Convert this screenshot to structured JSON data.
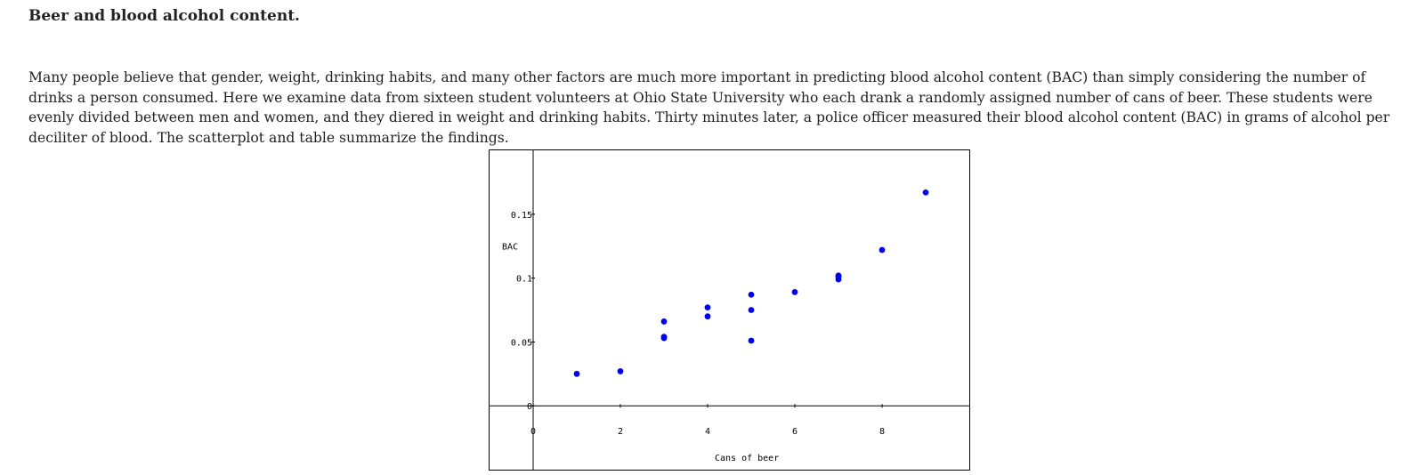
{
  "heading": "Beer and blood alcohol content.",
  "intro": "Many people believe that gender, weight, drinking habits, and many other factors are much more important in predicting blood alcohol content (BAC) than simply considering the number of drinks a person consumed. Here we examine data from sixteen student volunteers at Ohio State University who each drank a randomly assigned number of cans of beer. These students were evenly divided between men and women, and they diered in weight and drinking habits. Thirty minutes later, a police officer measured their blood alcohol content (BAC) in grams of alcohol per deciliter of blood. The scatterplot and table summarize the findings.",
  "chart_data": {
    "type": "scatter",
    "title": "",
    "xlabel": "Cans of beer",
    "ylabel": "BAC",
    "xlim": [
      -1,
      10
    ],
    "ylim": [
      -0.05,
      0.2
    ],
    "grid": false,
    "x_ticks": [
      0,
      2,
      4,
      6,
      8
    ],
    "x_tick_labels": [
      "0",
      "2",
      "4",
      "6",
      "8"
    ],
    "y_ticks": [
      0,
      0.05,
      0.1,
      0.15
    ],
    "y_tick_labels": [
      "0",
      "0.05",
      "0.1",
      "0.15"
    ],
    "point_color": "#0000ee",
    "series": [
      {
        "x": [
          1,
          2,
          3,
          3,
          3,
          4,
          4,
          5,
          5,
          5,
          6,
          7,
          7,
          7,
          8,
          9
        ],
        "y": [
          0.025,
          0.027,
          0.053,
          0.054,
          0.066,
          0.07,
          0.077,
          0.051,
          0.075,
          0.087,
          0.089,
          0.099,
          0.101,
          0.102,
          0.122,
          0.167
        ]
      }
    ]
  }
}
